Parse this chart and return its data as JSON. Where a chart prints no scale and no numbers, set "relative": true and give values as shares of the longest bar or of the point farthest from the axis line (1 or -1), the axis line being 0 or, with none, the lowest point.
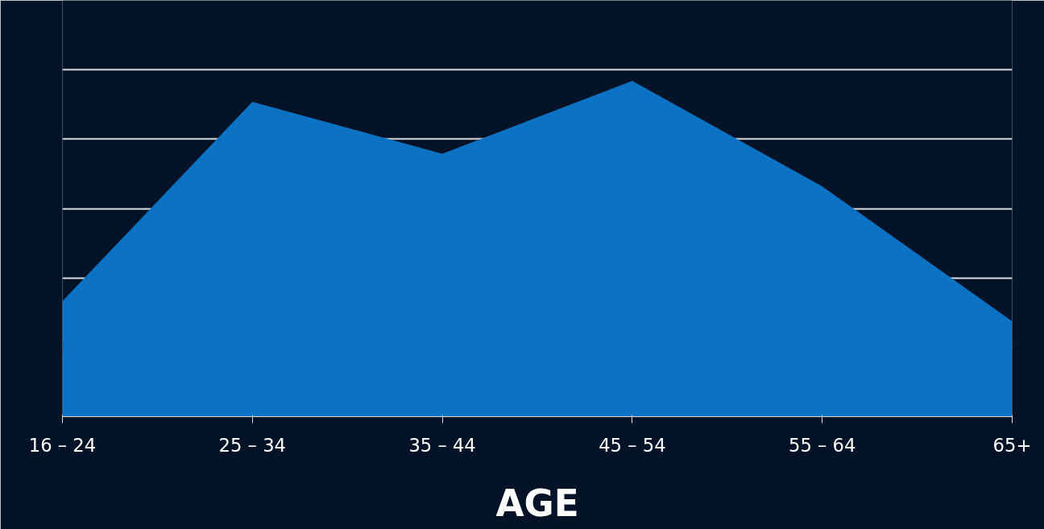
{
  "chart_data": {
    "type": "area",
    "xlabel": "AGE",
    "categories": [
      "16 – 24",
      "25 – 34",
      "35 – 44",
      "45 – 54",
      "55 – 64",
      "65+"
    ],
    "series": [
      {
        "color": "#0b72c4",
        "values": [
          0.344,
          0.938,
          0.783,
          1,
          0.686,
          0.284
        ]
      }
    ],
    "relative": true,
    "grid": "y"
  }
}
